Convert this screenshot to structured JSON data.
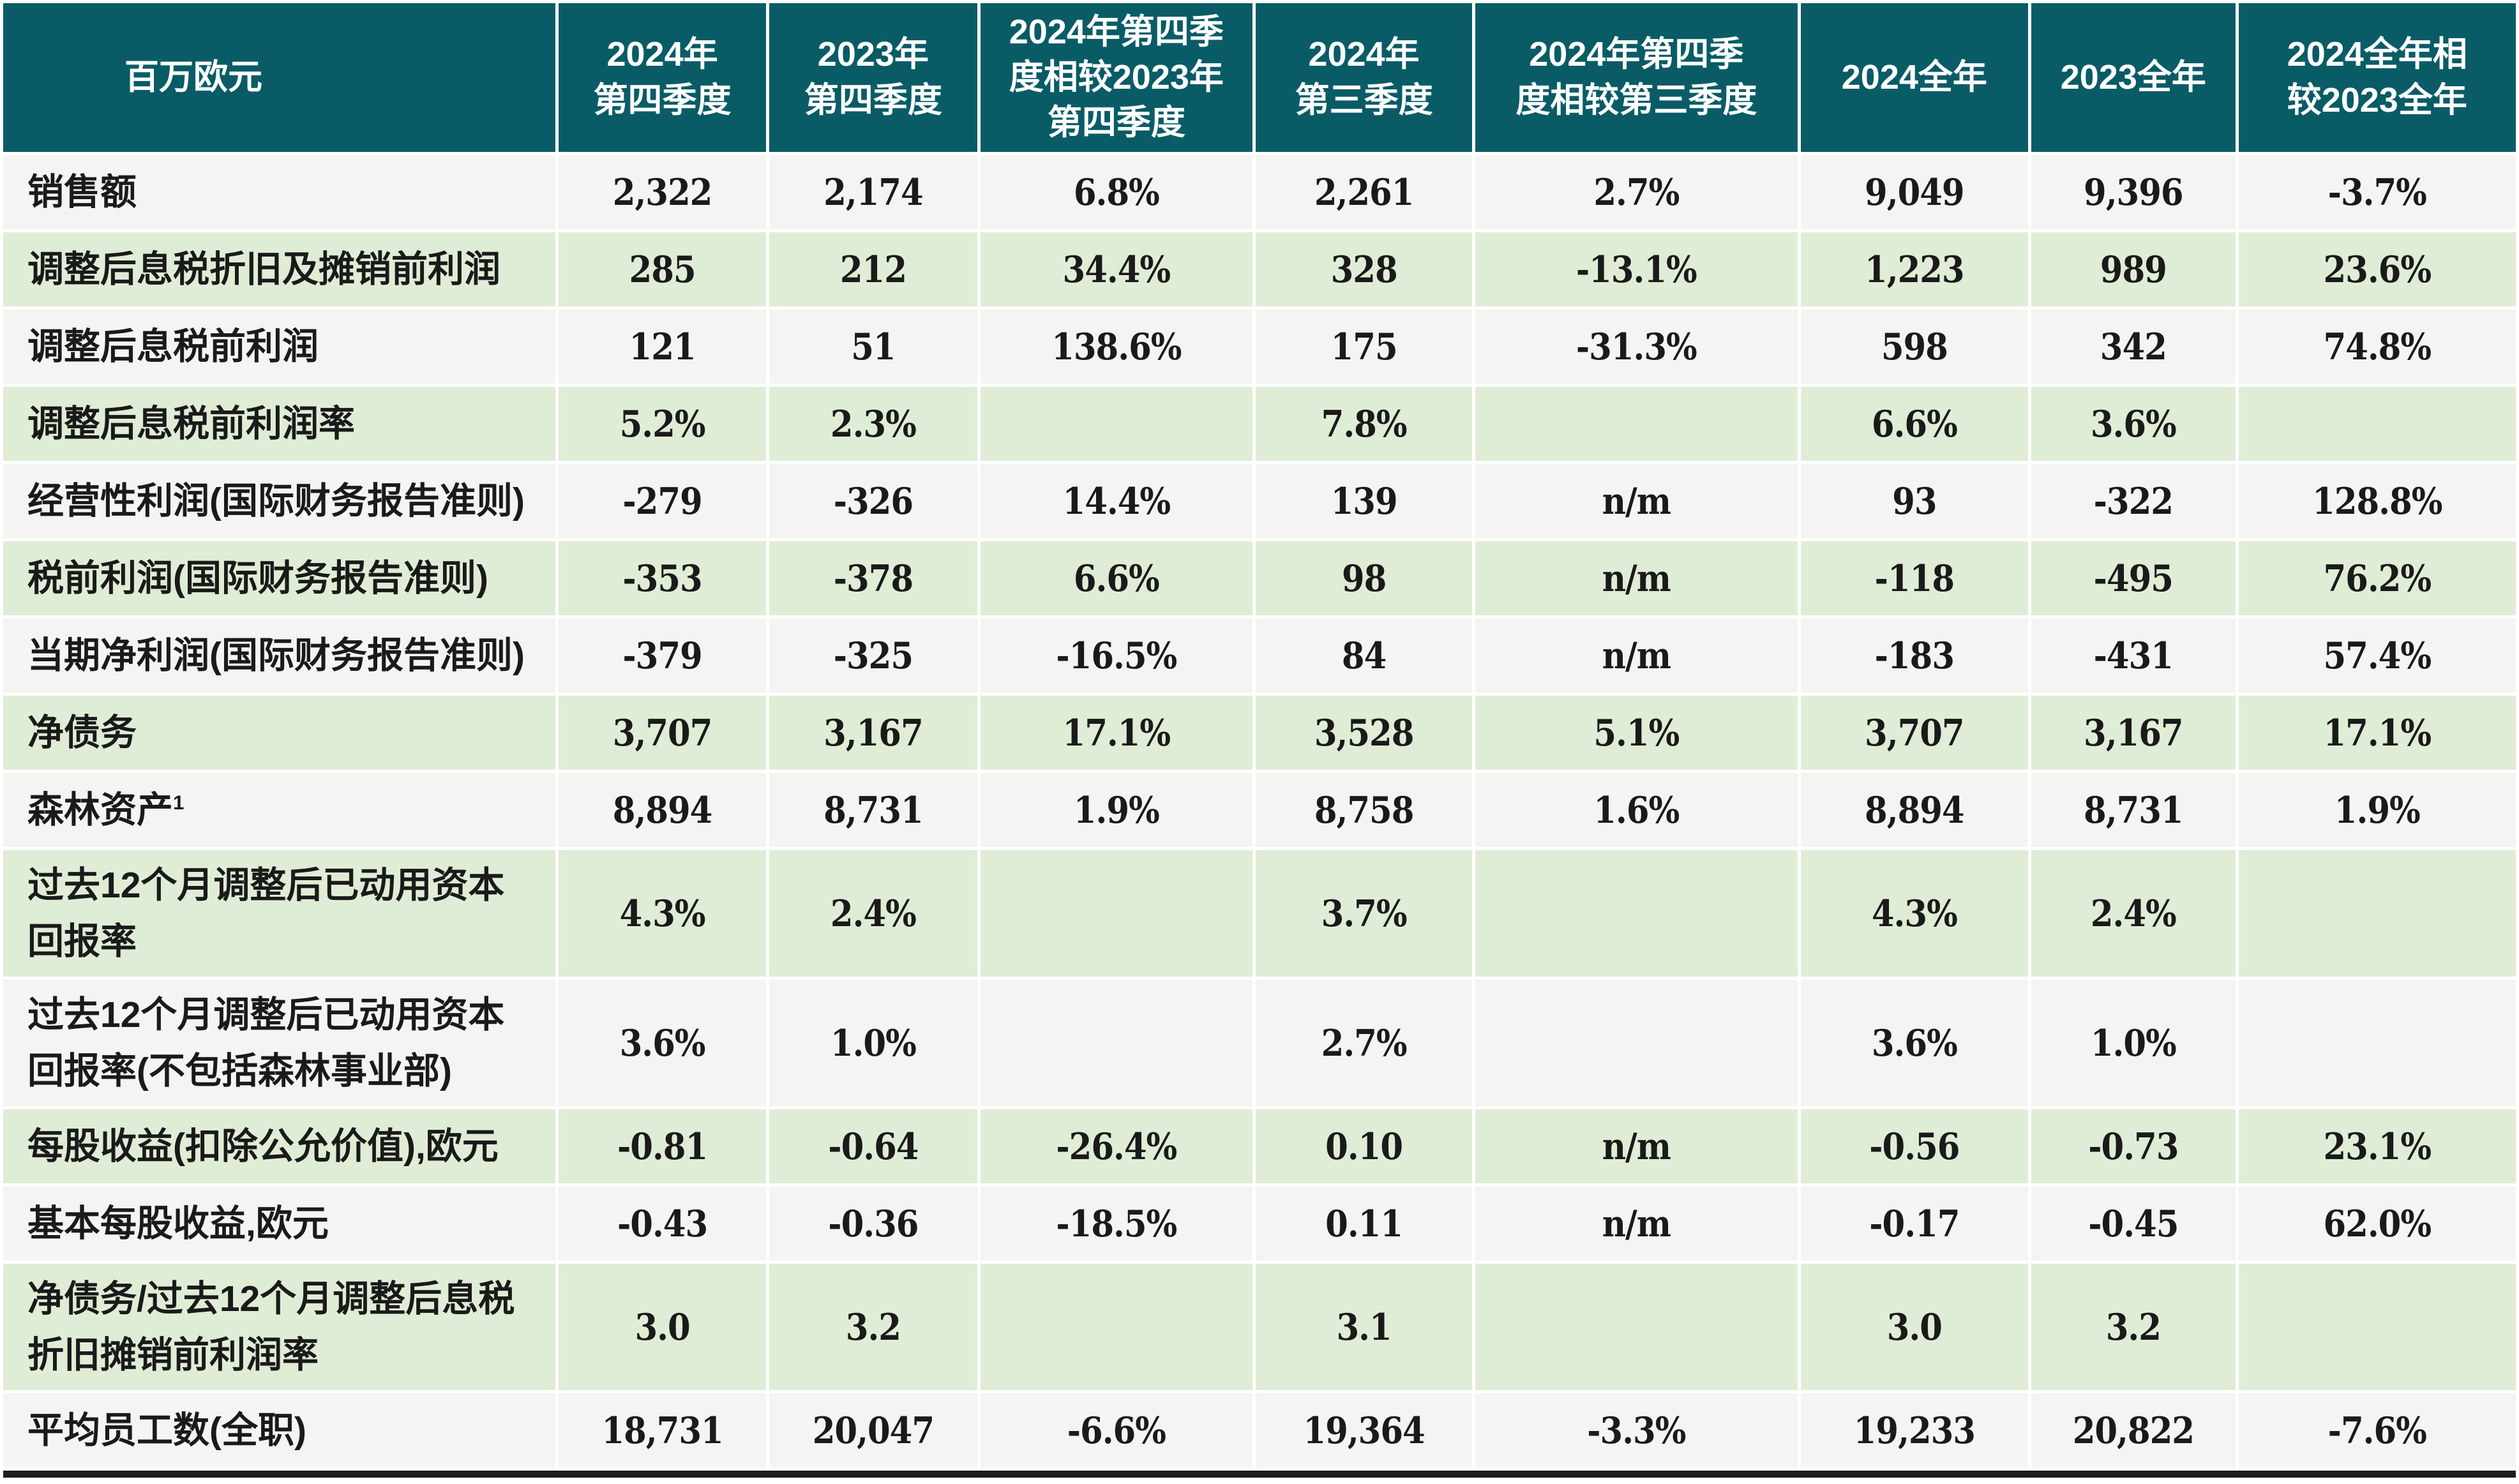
{
  "table": {
    "unit_label": "百万欧元",
    "columns": [
      "2024年\n第四季度",
      "2023年\n第四季度",
      "2024年第四季\n度相较2023年\n第四季度",
      "2024年\n第三季度",
      "2024年第四季\n度相较第三季度",
      "2024全年",
      "2023全年",
      "2024全年相\n较2023全年"
    ],
    "rows": [
      {
        "label": "销售额",
        "values": [
          "2,322",
          "2,174",
          "6.8%",
          "2,261",
          "2.7%",
          "9,049",
          "9,396",
          "-3.7%"
        ]
      },
      {
        "label": "调整后息税折旧及摊销前利润",
        "values": [
          "285",
          "212",
          "34.4%",
          "328",
          "-13.1%",
          "1,223",
          "989",
          "23.6%"
        ]
      },
      {
        "label": "调整后息税前利润",
        "values": [
          "121",
          "51",
          "138.6%",
          "175",
          "-31.3%",
          "598",
          "342",
          "74.8%"
        ]
      },
      {
        "label": "调整后息税前利润率",
        "values": [
          "5.2%",
          "2.3%",
          "",
          "7.8%",
          "",
          "6.6%",
          "3.6%",
          ""
        ]
      },
      {
        "label": "经营性利润(国际财务报告准则)",
        "values": [
          "-279",
          "-326",
          "14.4%",
          "139",
          "n/m",
          "93",
          "-322",
          "128.8%"
        ]
      },
      {
        "label": "税前利润(国际财务报告准则)",
        "values": [
          "-353",
          "-378",
          "6.6%",
          "98",
          "n/m",
          "-118",
          "-495",
          "76.2%"
        ]
      },
      {
        "label": "当期净利润(国际财务报告准则)",
        "values": [
          "-379",
          "-325",
          "-16.5%",
          "84",
          "n/m",
          "-183",
          "-431",
          "57.4%"
        ]
      },
      {
        "label": "净债务",
        "values": [
          "3,707",
          "3,167",
          "17.1%",
          "3,528",
          "5.1%",
          "3,707",
          "3,167",
          "17.1%"
        ]
      },
      {
        "label": "森林资产",
        "sup": "1",
        "values": [
          "8,894",
          "8,731",
          "1.9%",
          "8,758",
          "1.6%",
          "8,894",
          "8,731",
          "1.9%"
        ]
      },
      {
        "label": "过去12个月调整后已动用资本回报率",
        "values": [
          "4.3%",
          "2.4%",
          "",
          "3.7%",
          "",
          "4.3%",
          "2.4%",
          ""
        ]
      },
      {
        "label": "过去12个月调整后已动用资本回报率(不包括森林事业部)",
        "values": [
          "3.6%",
          "1.0%",
          "",
          "2.7%",
          "",
          "3.6%",
          "1.0%",
          ""
        ]
      },
      {
        "label": "每股收益(扣除公允价值),欧元",
        "values": [
          "-0.81",
          "-0.64",
          "-26.4%",
          "0.10",
          "n/m",
          "-0.56",
          "-0.73",
          "23.1%"
        ]
      },
      {
        "label": "基本每股收益,欧元",
        "values": [
          "-0.43",
          "-0.36",
          "-18.5%",
          "0.11",
          "n/m",
          "-0.17",
          "-0.45",
          "62.0%"
        ]
      },
      {
        "label": "净债务/过去12个月调整后息税折旧摊销前利润率",
        "values": [
          "3.0",
          "3.2",
          "",
          "3.1",
          "",
          "3.0",
          "3.2",
          ""
        ]
      },
      {
        "label": "平均员工数(全职)",
        "values": [
          "18,731",
          "20,047",
          "-6.6%",
          "19,364",
          "-3.3%",
          "19,233",
          "20,822",
          "-7.6%"
        ]
      }
    ]
  },
  "colors": {
    "header_bg": "#095c66",
    "header_text": "#ffffff",
    "row_gray": "#f4f4f3",
    "row_green": "#e0edd6",
    "text": "#1a1a1a",
    "bottom_rule": "#1c1c1c"
  }
}
